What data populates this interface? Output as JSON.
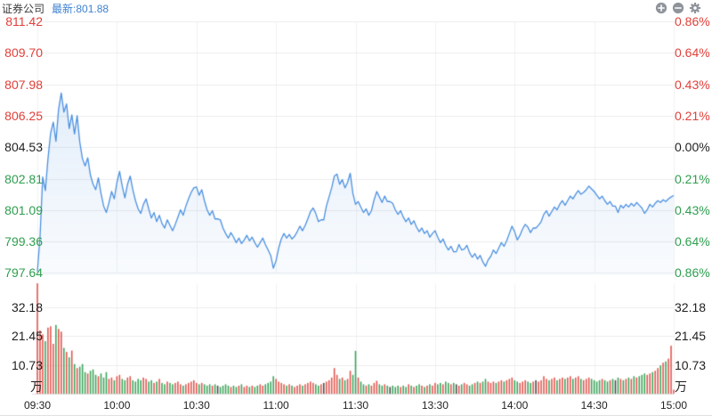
{
  "header": {
    "title": "证券公司",
    "latest_label": "最新:801.88",
    "icons": [
      "zoom-in",
      "zoom-out",
      "settings"
    ]
  },
  "colors": {
    "up": "#e0403a",
    "down": "#2f9e4f",
    "flat": "#1f1f1f",
    "line": "#4b90e0",
    "fill_rgb": "75,144,224",
    "grid_h": "#ececec",
    "grid_v": "#f1f1f1",
    "baseline": "#dddddd",
    "vol_up": "#e25750",
    "vol_down": "#3da55c",
    "vol_flat": "#4a4a4a",
    "accent": "#3e82d2",
    "icon": "#8f949b"
  },
  "chart_data": {
    "type": "line+bar",
    "title": "证券公司 分时走势",
    "prev_close": 804.53,
    "latest": 801.88,
    "price_axis": [
      {
        "text": "811.42",
        "tone": "up"
      },
      {
        "text": "809.70",
        "tone": "up"
      },
      {
        "text": "807.98",
        "tone": "up"
      },
      {
        "text": "806.25",
        "tone": "up"
      },
      {
        "text": "804.53",
        "tone": "flat"
      },
      {
        "text": "802.81",
        "tone": "down"
      },
      {
        "text": "801.09",
        "tone": "down"
      },
      {
        "text": "799.36",
        "tone": "down"
      },
      {
        "text": "797.64",
        "tone": "down"
      }
    ],
    "pct_axis": [
      {
        "text": "0.86%",
        "tone": "up"
      },
      {
        "text": "0.64%",
        "tone": "up"
      },
      {
        "text": "0.43%",
        "tone": "up"
      },
      {
        "text": "0.21%",
        "tone": "up"
      },
      {
        "text": "0.00%",
        "tone": "flat"
      },
      {
        "text": "0.21%",
        "tone": "down"
      },
      {
        "text": "0.43%",
        "tone": "down"
      },
      {
        "text": "0.64%",
        "tone": "down"
      },
      {
        "text": "0.86%",
        "tone": "down"
      }
    ],
    "volume_axis": [
      "32.18",
      "21.45",
      "10.73",
      "万"
    ],
    "volume_axis_values": [
      32.18,
      21.45,
      10.73,
      0
    ],
    "time_axis": [
      "09:30",
      "10:00",
      "10:30",
      "11:00",
      "11:30",
      "13:30",
      "14:00",
      "14:30",
      "15:00"
    ],
    "tick_minutes": [
      0,
      30,
      60,
      90,
      120,
      150,
      180,
      210,
      240
    ],
    "price_range": [
      797.64,
      811.42
    ],
    "pct_range": [
      -0.86,
      0.86
    ],
    "grid": true,
    "prices": [
      797.7,
      799.6,
      802.9,
      802.15,
      803.9,
      805.3,
      805.9,
      804.85,
      806.6,
      807.5,
      806.45,
      806.9,
      805.55,
      806.3,
      805.25,
      806.25,
      804.8,
      803.9,
      803.5,
      803.95,
      803.0,
      802.5,
      802.2,
      802.85,
      802.0,
      801.3,
      800.95,
      801.5,
      802.1,
      801.7,
      802.6,
      803.2,
      802.4,
      801.75,
      802.5,
      802.95,
      802.2,
      801.6,
      801.15,
      800.9,
      801.4,
      801.7,
      801.15,
      800.65,
      800.95,
      800.45,
      800.8,
      800.35,
      800.1,
      800.55,
      800.25,
      799.95,
      800.3,
      800.7,
      801.1,
      800.8,
      801.3,
      801.7,
      802.05,
      802.3,
      802.35,
      801.9,
      802.2,
      801.6,
      801.1,
      800.8,
      801.05,
      800.6,
      800.6,
      800.55,
      800.1,
      799.8,
      799.55,
      799.85,
      799.6,
      799.3,
      799.55,
      799.25,
      799.45,
      799.7,
      799.4,
      799.6,
      799.3,
      799.05,
      799.3,
      799.55,
      799.2,
      798.9,
      798.6,
      797.9,
      798.3,
      799.0,
      799.5,
      799.8,
      799.55,
      799.75,
      799.5,
      799.65,
      799.9,
      800.2,
      799.95,
      800.25,
      800.6,
      801.0,
      801.2,
      800.9,
      800.45,
      800.55,
      800.55,
      801.3,
      801.8,
      802.3,
      802.95,
      803.05,
      802.5,
      802.75,
      802.3,
      802.6,
      803.1,
      802.0,
      801.4,
      801.55,
      801.25,
      800.95,
      801.15,
      800.8,
      801.05,
      801.65,
      802.1,
      801.8,
      801.5,
      801.85,
      801.55,
      801.55,
      801.45,
      801.1,
      800.85,
      801.05,
      800.7,
      800.45,
      800.65,
      800.3,
      800.5,
      800.15,
      799.9,
      800.1,
      799.8,
      799.95,
      799.6,
      799.8,
      799.95,
      799.6,
      799.3,
      799.5,
      799.15,
      798.9,
      799.1,
      798.8,
      798.8,
      799.2,
      798.9,
      798.95,
      799.15,
      798.75,
      798.5,
      798.7,
      798.4,
      798.6,
      798.25,
      798.0,
      798.35,
      798.55,
      798.9,
      798.7,
      799.0,
      799.3,
      799.1,
      799.4,
      799.8,
      800.2,
      799.9,
      799.45,
      799.7,
      800.05,
      800.3,
      800.15,
      799.85,
      800.1,
      800.1,
      800.25,
      800.45,
      800.85,
      801.05,
      800.75,
      801.0,
      801.25,
      801.1,
      801.4,
      801.6,
      801.35,
      801.6,
      801.85,
      801.7,
      801.95,
      802.15,
      801.95,
      802.05,
      802.2,
      802.4,
      802.25,
      802.1,
      801.9,
      801.7,
      801.85,
      801.6,
      801.4,
      801.55,
      801.3,
      801.3,
      800.95,
      801.35,
      801.2,
      801.4,
      801.25,
      801.45,
      801.3,
      801.5,
      801.35,
      801.2,
      800.9,
      801.1,
      801.4,
      801.25,
      801.45,
      801.6,
      801.5,
      801.65,
      801.55,
      801.7,
      801.8,
      801.88
    ],
    "volumes": [
      44,
      23.5,
      22,
      19.5,
      24.5,
      25,
      18.5,
      25.5,
      24,
      23,
      17,
      15.5,
      13.5,
      16,
      11,
      9.5,
      10,
      11,
      8,
      7.5,
      8.5,
      9,
      7,
      6.5,
      7.5,
      6,
      8,
      5.5,
      6,
      5,
      6.5,
      7,
      5.5,
      5,
      6,
      6.5,
      5,
      4.5,
      5.5,
      5,
      6,
      5.5,
      4.5,
      5,
      4,
      4.5,
      5.5,
      4,
      3.5,
      4.5,
      4,
      3.5,
      4,
      4.5,
      3.5,
      3,
      3.5,
      4,
      4.5,
      5,
      4,
      3.5,
      4,
      3.5,
      3,
      3.5,
      3,
      3.5,
      3,
      2.5,
      3,
      3.5,
      3,
      2.5,
      3,
      2.5,
      3,
      3.5,
      2.5,
      3,
      2.5,
      3,
      2.5,
      3,
      3.5,
      3,
      3.5,
      4,
      4.5,
      6.5,
      5.5,
      4.5,
      4,
      3.5,
      3,
      3.5,
      3,
      2.5,
      3,
      3.5,
      3,
      3.5,
      4,
      4.5,
      4,
      3.5,
      3,
      3.5,
      4,
      4.5,
      5,
      6,
      9.5,
      7,
      5.5,
      6,
      5,
      5.5,
      8.5,
      7,
      15.9,
      6,
      4.5,
      3.5,
      3,
      3.5,
      3,
      4,
      4.8,
      3.5,
      3,
      3.5,
      3,
      2.5,
      3,
      2.5,
      3,
      2.5,
      3,
      2.5,
      3.5,
      3,
      2.5,
      3,
      3.5,
      3,
      2.5,
      3,
      3.5,
      3,
      4,
      3.5,
      4,
      3.5,
      4.5,
      4,
      3.5,
      4,
      3.5,
      3,
      3.5,
      4,
      3.5,
      3,
      3.5,
      4,
      4.5,
      4,
      4.5,
      5.5,
      4.5,
      4,
      4.5,
      4,
      4.5,
      5,
      4.5,
      5,
      5.5,
      6,
      5,
      4.5,
      4,
      4.5,
      5,
      4.5,
      4,
      4.5,
      5,
      4.5,
      5,
      6.5,
      5.5,
      5,
      5.5,
      6,
      5,
      5.5,
      6,
      5.5,
      6,
      6.5,
      5.5,
      6,
      6.5,
      5.5,
      5,
      5.5,
      6,
      5.5,
      5,
      4.5,
      5,
      5.5,
      5,
      4.5,
      5,
      5.5,
      5,
      6,
      5.5,
      5,
      5.5,
      6,
      5.5,
      6.5,
      6,
      6.5,
      7,
      7.5,
      7,
      7.5,
      8,
      8.5,
      9.5,
      10.5,
      11.5,
      12,
      13,
      17.8,
      1.5
    ]
  }
}
